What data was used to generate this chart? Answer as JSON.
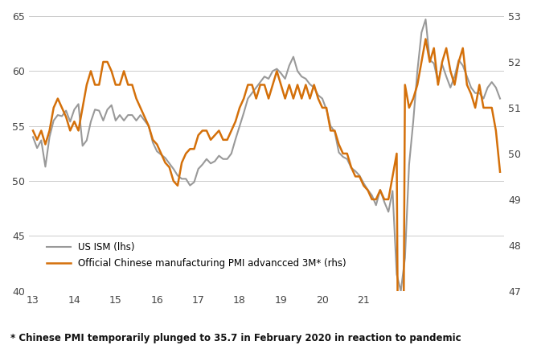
{
  "footnote": "* Chinese PMI temporarily plunged to 35.7 in February 2020 in reaction to pandemic",
  "legend_ism": "US ISM (lhs)",
  "legend_pmi": "Official Chinese manufacturing PMI advancced 3M* (rhs)",
  "ism_color": "#999999",
  "pmi_color": "#D4700A",
  "background_color": "#ffffff",
  "ylim_left": [
    40,
    65
  ],
  "ylim_right": [
    47,
    53
  ],
  "yticks_left": [
    40,
    45,
    50,
    55,
    60,
    65
  ],
  "yticks_right": [
    47,
    48,
    49,
    50,
    51,
    52,
    53
  ],
  "us_ism": [
    54.0,
    53.0,
    53.7,
    51.3,
    54.0,
    55.5,
    56.0,
    55.9,
    56.4,
    55.4,
    56.5,
    57.0,
    53.2,
    53.7,
    55.4,
    56.5,
    56.4,
    55.5,
    56.5,
    56.9,
    55.5,
    56.0,
    55.5,
    56.0,
    56.0,
    55.5,
    56.0,
    55.5,
    55.0,
    53.5,
    52.7,
    52.4,
    52.1,
    51.6,
    51.1,
    50.5,
    50.2,
    50.2,
    49.6,
    49.9,
    51.1,
    51.5,
    52.0,
    51.6,
    51.8,
    52.3,
    52.0,
    52.0,
    52.5,
    53.8,
    55.0,
    56.2,
    57.5,
    58.0,
    58.5,
    59.0,
    59.5,
    59.3,
    60.0,
    60.2,
    59.8,
    59.3,
    60.5,
    61.3,
    60.0,
    59.5,
    59.3,
    58.8,
    58.5,
    57.8,
    57.5,
    56.5,
    55.0,
    54.5,
    52.6,
    52.2,
    52.0,
    51.2,
    50.9,
    50.5,
    49.8,
    49.2,
    48.7,
    47.8,
    49.2,
    48.1,
    47.2,
    49.1,
    41.5,
    40.0,
    43.0,
    51.5,
    55.4,
    60.0,
    63.5,
    64.7,
    61.0,
    60.7,
    59.0,
    60.6,
    59.5,
    58.5,
    59.5,
    61.0,
    60.5,
    59.5,
    58.5,
    58.0,
    58.0,
    57.5,
    58.5,
    59.0,
    58.5,
    57.5
  ],
  "cn_pmi": [
    50.5,
    50.3,
    50.5,
    50.2,
    50.5,
    51.0,
    51.2,
    51.0,
    50.8,
    50.5,
    50.7,
    50.5,
    51.0,
    51.5,
    51.8,
    51.5,
    51.5,
    52.0,
    52.0,
    51.8,
    51.5,
    51.5,
    51.8,
    51.5,
    51.5,
    51.2,
    51.0,
    50.8,
    50.6,
    50.3,
    50.2,
    50.0,
    49.8,
    49.7,
    49.4,
    49.3,
    49.8,
    50.0,
    50.1,
    50.1,
    50.4,
    50.5,
    50.5,
    50.3,
    50.4,
    50.5,
    50.3,
    50.3,
    50.5,
    50.7,
    51.0,
    51.2,
    51.5,
    51.5,
    51.2,
    51.5,
    51.5,
    51.2,
    51.5,
    51.8,
    51.5,
    51.2,
    51.5,
    51.2,
    51.5,
    51.2,
    51.5,
    51.2,
    51.5,
    51.2,
    51.0,
    51.0,
    50.5,
    50.5,
    50.2,
    50.0,
    50.0,
    49.7,
    49.5,
    49.5,
    49.3,
    49.2,
    49.0,
    49.0,
    49.2,
    49.0,
    49.0,
    49.5,
    50.0,
    35.7,
    51.5,
    51.0,
    51.2,
    51.5,
    52.0,
    52.5,
    52.0,
    52.3,
    51.5,
    52.0,
    52.3,
    51.8,
    51.5,
    52.0,
    52.3,
    51.5,
    51.3,
    51.0,
    51.5,
    51.0,
    51.0,
    51.0,
    50.5,
    49.6
  ],
  "xtick_positions": [
    0,
    10,
    20,
    30,
    40,
    50,
    60,
    70,
    80,
    90,
    100,
    110
  ],
  "xtick_labels": [
    "13",
    "14",
    "15",
    "16",
    "17",
    "18",
    "19",
    "20",
    "21",
    "",
    "",
    ""
  ]
}
